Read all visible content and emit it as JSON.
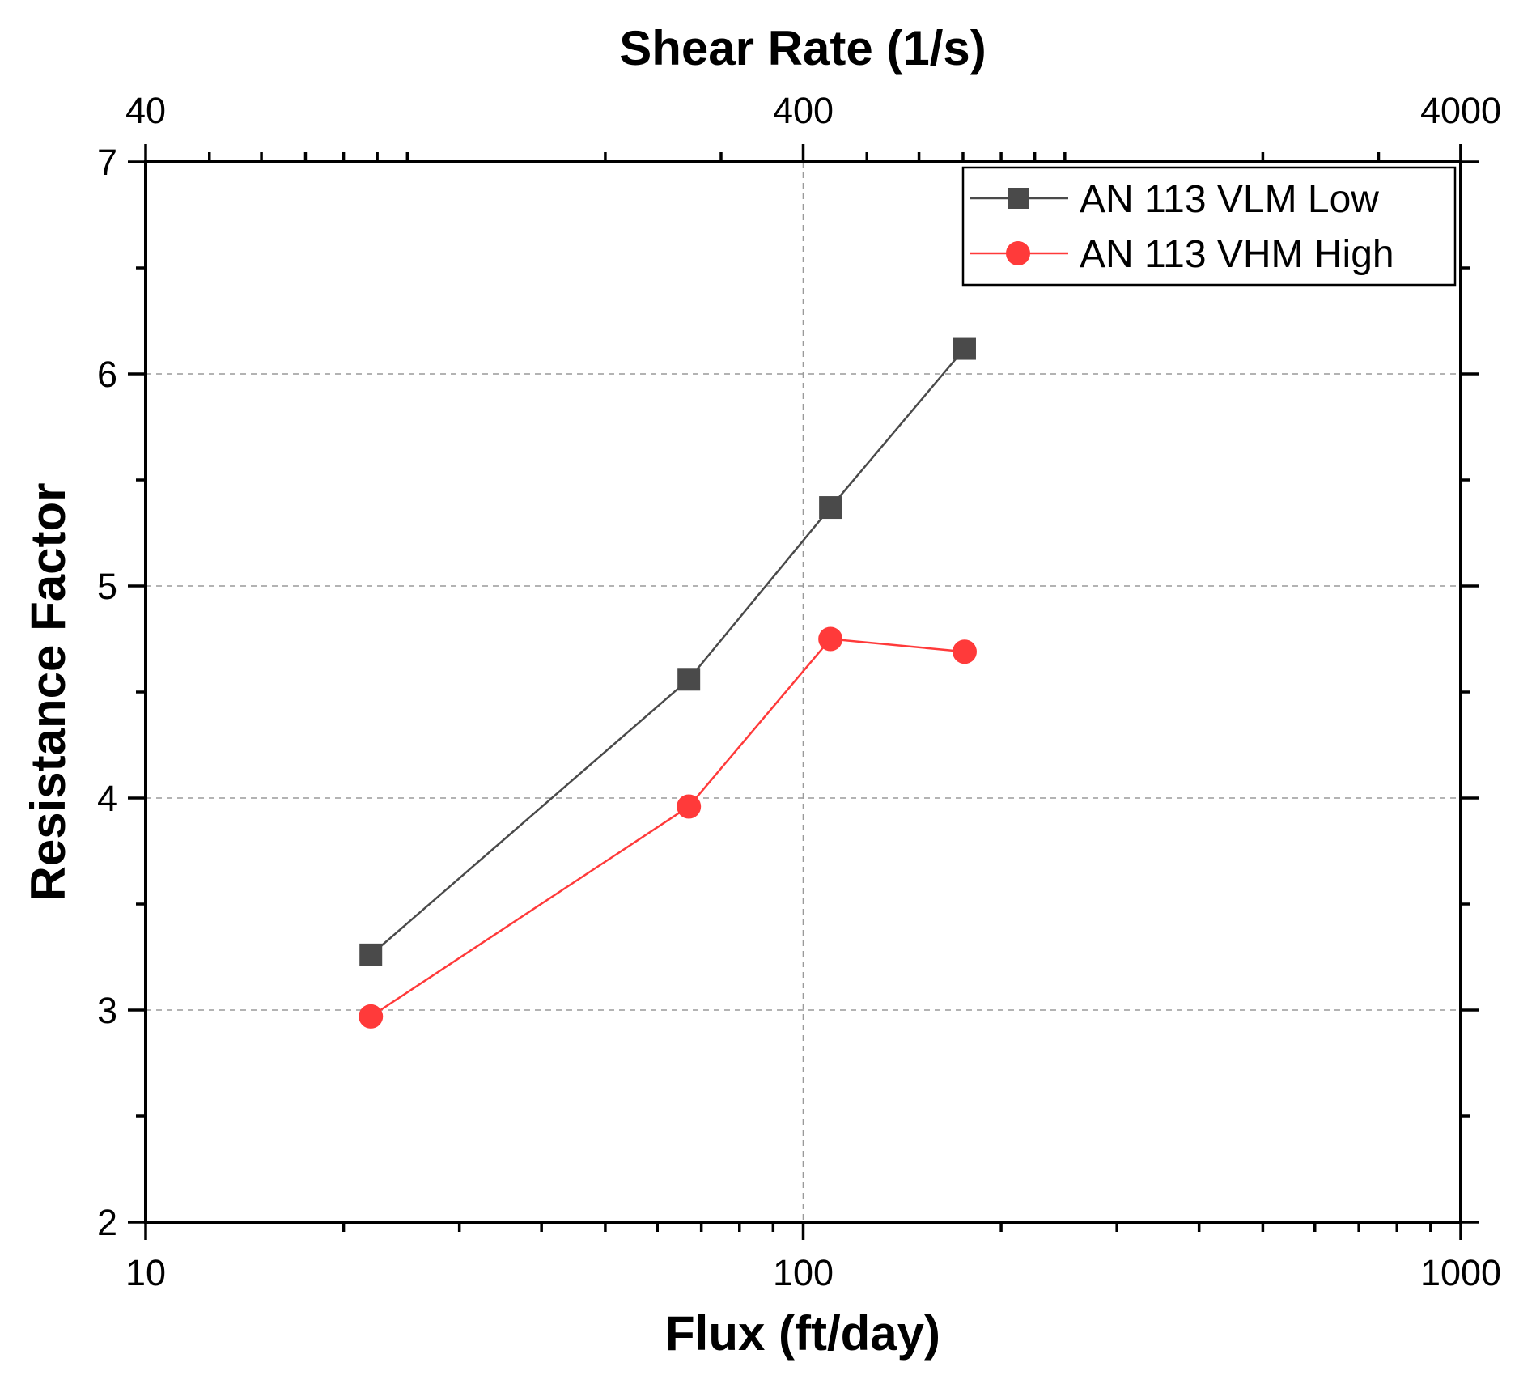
{
  "chart_data": {
    "type": "line",
    "title": "",
    "xlabel": "Flux (ft/day)",
    "ylabel": "Resistance Factor",
    "x2label": "Shear Rate (1/s)",
    "xscale": "log",
    "xlim": [
      10,
      1000
    ],
    "x_ticks": [
      {
        "value": 10,
        "label": "10"
      },
      {
        "value": 100,
        "label": "100"
      },
      {
        "value": 1000,
        "label": "1000"
      }
    ],
    "x2scale": "log",
    "x2lim": [
      40,
      4000
    ],
    "x2_ticks": [
      {
        "value": 40,
        "label": "40"
      },
      {
        "value": 400,
        "label": "400"
      },
      {
        "value": 4000,
        "label": "4000"
      }
    ],
    "ylim": [
      2,
      7
    ],
    "y_ticks": [
      {
        "value": 2,
        "label": "2"
      },
      {
        "value": 3,
        "label": "3"
      },
      {
        "value": 4,
        "label": "4"
      },
      {
        "value": 5,
        "label": "5"
      },
      {
        "value": 6,
        "label": "6"
      },
      {
        "value": 7,
        "label": "7"
      }
    ],
    "grid": true,
    "legend_position": "top-right",
    "series": [
      {
        "name": "AN 113 VLM Low",
        "color": "#4a4a4a",
        "marker": "square",
        "x": [
          22,
          67,
          110,
          176
        ],
        "y": [
          3.26,
          4.56,
          5.37,
          6.12
        ]
      },
      {
        "name": "AN 113 VHM High",
        "color": "#ff3a3a",
        "marker": "circle",
        "x": [
          22,
          67,
          110,
          176
        ],
        "y": [
          2.97,
          3.96,
          4.75,
          4.69
        ]
      }
    ]
  }
}
